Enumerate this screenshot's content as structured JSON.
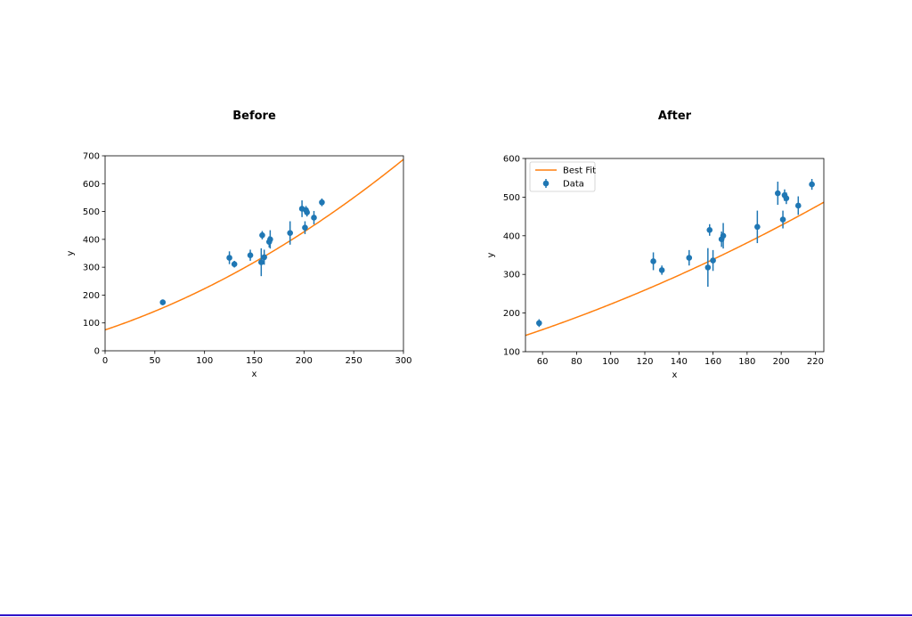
{
  "chart_data": [
    {
      "type": "scatter",
      "title": "Before",
      "xlabel": "x",
      "ylabel": "y",
      "xlim": [
        0,
        300
      ],
      "ylim": [
        0,
        700
      ],
      "xticks": [
        0,
        50,
        100,
        150,
        200,
        250,
        300
      ],
      "yticks": [
        0,
        100,
        200,
        300,
        400,
        500,
        600,
        700
      ],
      "grid": false,
      "legend": null,
      "series": [
        {
          "type": "errorbar",
          "points": [
            {
              "x": 58,
              "y": 174,
              "err": 10
            },
            {
              "x": 125,
              "y": 334,
              "err": 23
            },
            {
              "x": 130,
              "y": 311,
              "err": 12
            },
            {
              "x": 146,
              "y": 343,
              "err": 20
            },
            {
              "x": 157,
              "y": 318,
              "err": 50
            },
            {
              "x": 158,
              "y": 415,
              "err": 15
            },
            {
              "x": 160,
              "y": 336,
              "err": 27
            },
            {
              "x": 165,
              "y": 391,
              "err": 20
            },
            {
              "x": 166,
              "y": 400,
              "err": 33
            },
            {
              "x": 186,
              "y": 423,
              "err": 42
            },
            {
              "x": 198,
              "y": 510,
              "err": 30
            },
            {
              "x": 201,
              "y": 442,
              "err": 23
            },
            {
              "x": 202,
              "y": 505,
              "err": 15
            },
            {
              "x": 203,
              "y": 497,
              "err": 15
            },
            {
              "x": 210,
              "y": 478,
              "err": 24
            },
            {
              "x": 218,
              "y": 533,
              "err": 14
            }
          ]
        },
        {
          "type": "line",
          "function": "0.0028*x^2 + 1.2*x + 75"
        }
      ],
      "colors": {
        "data": "#1f77b4",
        "fit": "#ff7f0e"
      }
    },
    {
      "type": "scatter",
      "title": "After",
      "xlabel": "x",
      "ylabel": "y",
      "xlim": [
        50,
        225
      ],
      "ylim": [
        100,
        600
      ],
      "xticks": [
        60,
        80,
        100,
        120,
        140,
        160,
        180,
        200,
        220
      ],
      "yticks": [
        100,
        200,
        300,
        400,
        500,
        600
      ],
      "grid": false,
      "legend": "top-left",
      "series": [
        {
          "name": "Data",
          "type": "errorbar",
          "points": [
            {
              "x": 58,
              "y": 174,
              "err": 10
            },
            {
              "x": 125,
              "y": 334,
              "err": 23
            },
            {
              "x": 130,
              "y": 311,
              "err": 12
            },
            {
              "x": 146,
              "y": 343,
              "err": 20
            },
            {
              "x": 157,
              "y": 318,
              "err": 50
            },
            {
              "x": 158,
              "y": 415,
              "err": 15
            },
            {
              "x": 160,
              "y": 336,
              "err": 27
            },
            {
              "x": 165,
              "y": 391,
              "err": 20
            },
            {
              "x": 166,
              "y": 400,
              "err": 33
            },
            {
              "x": 186,
              "y": 423,
              "err": 42
            },
            {
              "x": 198,
              "y": 510,
              "err": 30
            },
            {
              "x": 201,
              "y": 442,
              "err": 23
            },
            {
              "x": 202,
              "y": 505,
              "err": 15
            },
            {
              "x": 203,
              "y": 497,
              "err": 15
            },
            {
              "x": 210,
              "y": 478,
              "err": 24
            },
            {
              "x": 218,
              "y": 533,
              "err": 14
            }
          ]
        },
        {
          "name": "Best Fit",
          "type": "line",
          "function": "0.0028*x^2 + 1.2*x + 75"
        }
      ],
      "colors": {
        "data": "#1f77b4",
        "fit": "#ff7f0e"
      }
    }
  ]
}
